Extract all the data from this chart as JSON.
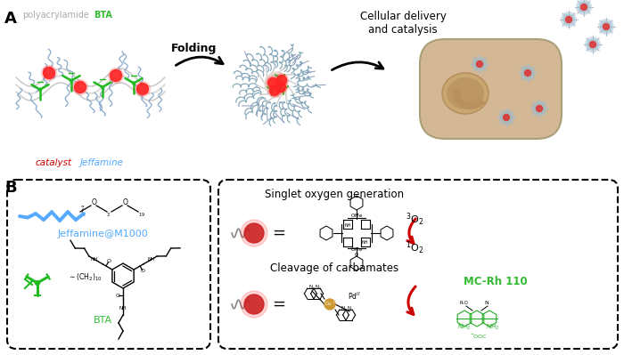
{
  "background_color": "#ffffff",
  "panel_A_label": "A",
  "panel_B_label": "B",
  "label_polyacrylamide": "polyacrylamide",
  "label_BTA_top": "BTA",
  "label_catalyst": "catalyst",
  "label_Jeffamine": "Jeffamine",
  "label_Folding": "Folding",
  "label_cellular": "Cellular delivery\nand catalysis",
  "label_jeffamine_compound": "Jeffamine@M1000",
  "label_bta_compound": "BTA",
  "label_singlet": "Singlet oxygen generation",
  "label_cleavage": "Cleavage of carbamates",
  "label_3O2": "$^3$O$_2$",
  "label_1O2": "$^1$O$_2$",
  "label_MC_Rh110": "MC-Rh 110",
  "color_polyacrylamide": "#aaaaaa",
  "color_BTA_label": "#33bb33",
  "color_catalyst": "#cc0000",
  "color_Jeffamine": "#55aaff",
  "color_jeffamine_compound": "#55aaff",
  "color_bta_compound": "#33bb33",
  "color_MC_Rh110": "#33bb33",
  "color_chain_blue": "#88aacc",
  "color_chain_gray": "#bbbbbb",
  "color_chain_white": "#dddddd",
  "fig_width": 7.0,
  "fig_height": 3.99,
  "cell_fill": "#d4b896",
  "cell_edge": "#aaa077",
  "nucleus_fill": "#c8a870",
  "nucleus_inner": "#b89060"
}
